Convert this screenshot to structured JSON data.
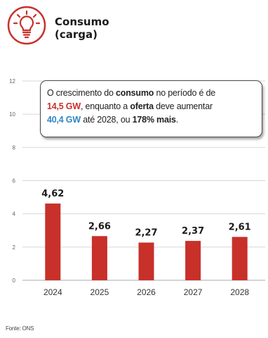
{
  "header": {
    "title_line1": "Consumo",
    "title_line2": "(carga)",
    "icon": "light-bulb-icon",
    "icon_color": "#c8302a"
  },
  "callout": {
    "p1": "O crescimento do ",
    "b1": "consumo",
    "p2": " no período é de ",
    "red_value": "14,5 GW",
    "p3": ", enquanto a ",
    "b2": "oferta",
    "p4": " deve aumentar ",
    "blue_value": "40,4 GW",
    "p5": " até 2028, ou ",
    "b3": "178% mais",
    "p6": "."
  },
  "source": "Fonte: ONS",
  "chart_data": {
    "type": "bar",
    "categories": [
      "2024",
      "2025",
      "2026",
      "2027",
      "2028"
    ],
    "values": [
      4.62,
      2.66,
      2.27,
      2.37,
      2.61
    ],
    "value_labels": [
      "4,62",
      "2,66",
      "2,27",
      "2,37",
      "2,61"
    ],
    "yticks": [
      "0",
      "2",
      "4",
      "6",
      "8",
      "10",
      "12"
    ],
    "ylim": [
      0,
      12
    ],
    "grid": true,
    "bar_color": "#c8302a",
    "grid_color": "#d7d7d7"
  }
}
